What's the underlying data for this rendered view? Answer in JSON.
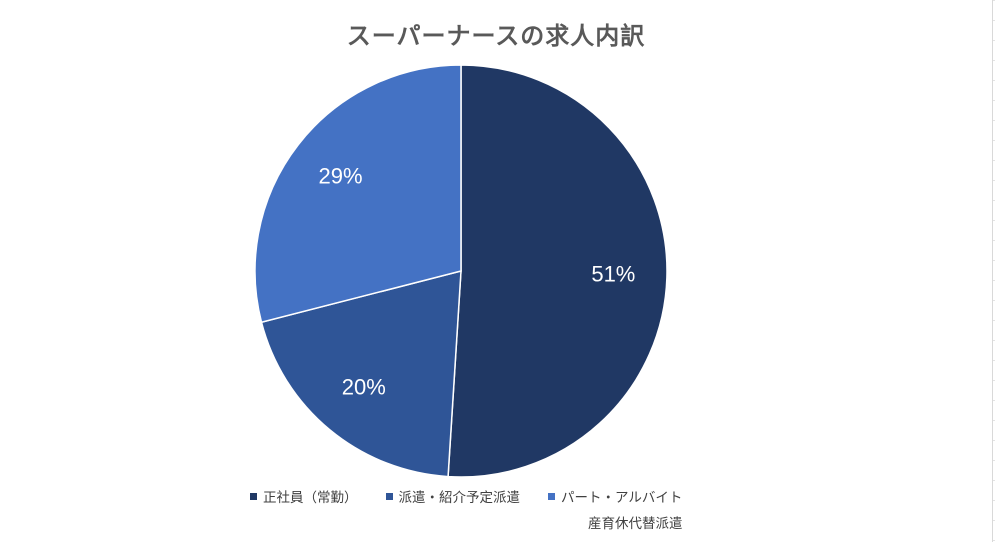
{
  "chart_data": {
    "type": "pie",
    "title": "スーパーナースの求人内訳",
    "categories": [
      "正社員（常勤）",
      "派遣・紹介予定派遣",
      "パート・アルバイト産育休代替派遣"
    ],
    "values": [
      51,
      20,
      29
    ],
    "value_labels": [
      "51%",
      "20%",
      "29%"
    ],
    "colors": [
      "#203864",
      "#2f5597",
      "#4472c4"
    ],
    "legend": {
      "placement": "bottom",
      "entries": [
        {
          "label": "正社員（常勤）",
          "color": "#203864"
        },
        {
          "label": "派遣・紹介予定派遣",
          "color": "#2f5597"
        },
        {
          "label_line1": "パート・アルバイト",
          "label_line2": "産育休代替派遣",
          "color": "#4472c4"
        }
      ]
    }
  }
}
